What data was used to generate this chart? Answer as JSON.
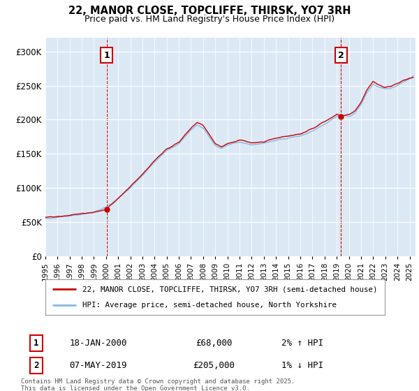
{
  "title": "22, MANOR CLOSE, TOPCLIFFE, THIRSK, YO7 3RH",
  "subtitle": "Price paid vs. HM Land Registry's House Price Index (HPI)",
  "bg_color": "#dce9f5",
  "fig_bg_color": "#ffffff",
  "hpi_color": "#88b8e0",
  "price_color": "#cc0000",
  "ylim": [
    0,
    320000
  ],
  "yticks": [
    0,
    50000,
    100000,
    150000,
    200000,
    250000,
    300000
  ],
  "ytick_labels": [
    "£0",
    "£50K",
    "£100K",
    "£150K",
    "£200K",
    "£250K",
    "£300K"
  ],
  "xmin": 1995.0,
  "xmax": 2025.5,
  "marker1_x": 2000.05,
  "marker1_y": 68000,
  "marker1_label": "1",
  "marker1_date": "18-JAN-2000",
  "marker1_price": "£68,000",
  "marker1_hpi": "2% ↑ HPI",
  "marker2_x": 2019.35,
  "marker2_y": 205000,
  "marker2_label": "2",
  "marker2_date": "07-MAY-2019",
  "marker2_price": "£205,000",
  "marker2_hpi": "1% ↓ HPI",
  "legend_line1": "22, MANOR CLOSE, TOPCLIFFE, THIRSK, YO7 3RH (semi-detached house)",
  "legend_line2": "HPI: Average price, semi-detached house, North Yorkshire",
  "footer": "Contains HM Land Registry data © Crown copyright and database right 2025.\nThis data is licensed under the Open Government Licence v3.0.",
  "xticks": [
    1995,
    1996,
    1997,
    1998,
    1999,
    2000,
    2001,
    2002,
    2003,
    2004,
    2005,
    2006,
    2007,
    2008,
    2009,
    2010,
    2011,
    2012,
    2013,
    2014,
    2015,
    2016,
    2017,
    2018,
    2019,
    2020,
    2021,
    2022,
    2023,
    2024,
    2025
  ]
}
